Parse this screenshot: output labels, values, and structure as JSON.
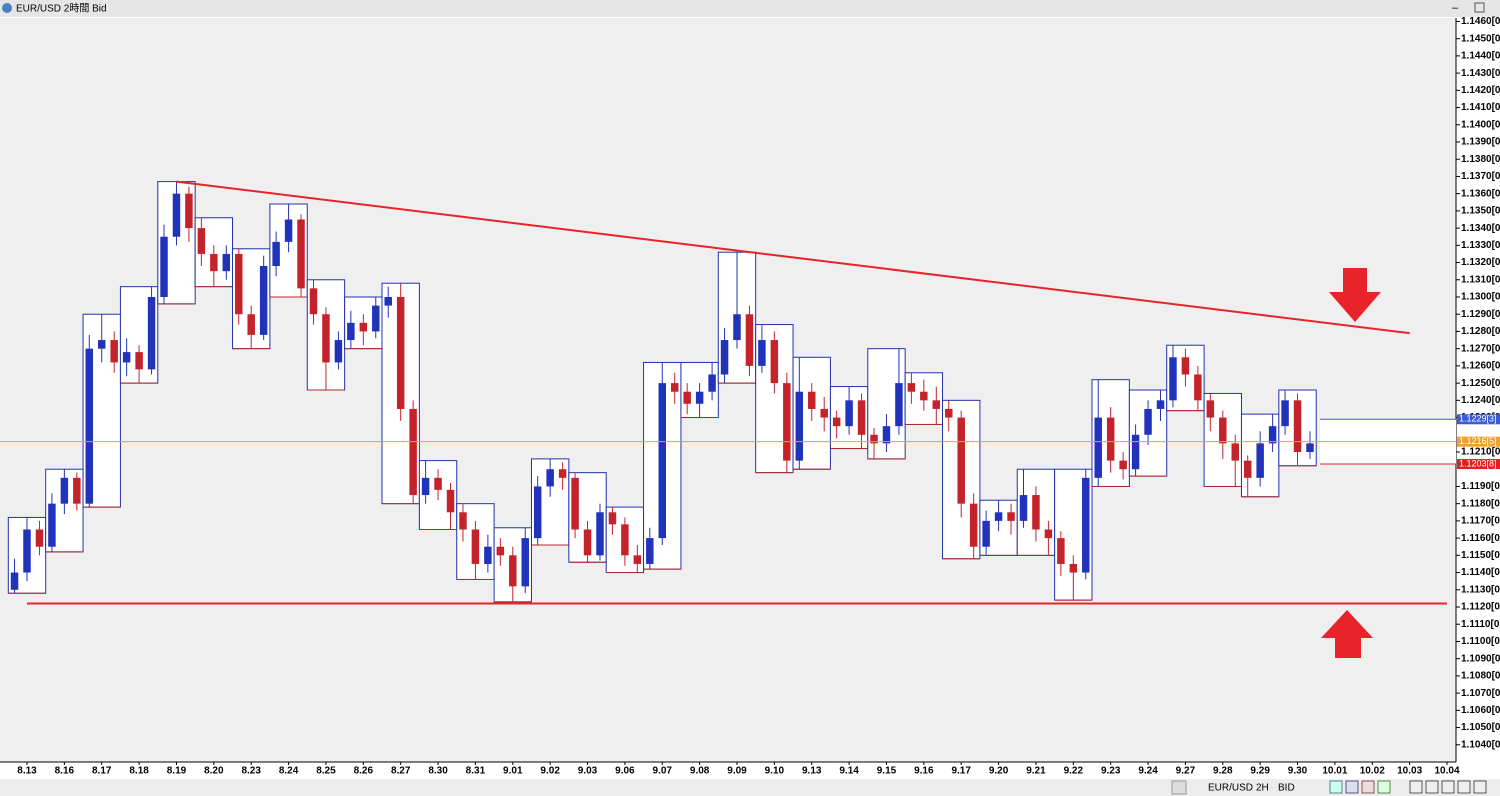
{
  "window": {
    "title": "EUR/USD 2時間 Bid"
  },
  "toolbar": {
    "symbol": "EUR/USD",
    "timeframe": "2H",
    "side": "BID"
  },
  "chart_data": {
    "type": "candlestick",
    "categories": [
      "8.13",
      "8.16",
      "8.17",
      "8.18",
      "8.19",
      "8.20",
      "8.23",
      "8.24",
      "8.25",
      "8.26",
      "8.27",
      "8.30",
      "8.31",
      "9.01",
      "9.02",
      "9.03",
      "9.06",
      "9.07",
      "9.08",
      "9.09",
      "9.10",
      "9.13",
      "9.14",
      "9.15",
      "9.16",
      "9.17",
      "9.20",
      "9.21",
      "9.22",
      "9.23",
      "9.24",
      "9.27",
      "9.28",
      "9.29",
      "9.30",
      "10.01",
      "10.02",
      "10.03",
      "10.04"
    ],
    "ylim": [
      1.103,
      1.1462
    ],
    "yticks": [
      {
        "value": 1.146,
        "label": "1.1460[0"
      },
      {
        "value": 1.145,
        "label": "1.1450[0"
      },
      {
        "value": 1.144,
        "label": "1.1440[0"
      },
      {
        "value": 1.143,
        "label": "1.1430[0"
      },
      {
        "value": 1.142,
        "label": "1.1420[0"
      },
      {
        "value": 1.141,
        "label": "1.1410[0"
      },
      {
        "value": 1.14,
        "label": "1.1400[0"
      },
      {
        "value": 1.139,
        "label": "1.1390[0"
      },
      {
        "value": 1.138,
        "label": "1.1380[0"
      },
      {
        "value": 1.137,
        "label": "1.1370[0"
      },
      {
        "value": 1.136,
        "label": "1.1360[0"
      },
      {
        "value": 1.135,
        "label": "1.1350[0"
      },
      {
        "value": 1.134,
        "label": "1.1340[0"
      },
      {
        "value": 1.133,
        "label": "1.1330[0"
      },
      {
        "value": 1.132,
        "label": "1.1320[0"
      },
      {
        "value": 1.131,
        "label": "1.1310[0"
      },
      {
        "value": 1.13,
        "label": "1.1300[0"
      },
      {
        "value": 1.129,
        "label": "1.1290[0"
      },
      {
        "value": 1.128,
        "label": "1.1280[0"
      },
      {
        "value": 1.127,
        "label": "1.1270[0"
      },
      {
        "value": 1.126,
        "label": "1.1260[0"
      },
      {
        "value": 1.125,
        "label": "1.1250[0"
      },
      {
        "value": 1.124,
        "label": "1.1240[0"
      },
      {
        "value": 1.123,
        "label": "1.1230[0"
      },
      {
        "value": 1.121,
        "label": "1.1210[0"
      },
      {
        "value": 1.119,
        "label": "1.1190[0"
      },
      {
        "value": 1.118,
        "label": "1.1180[0"
      },
      {
        "value": 1.117,
        "label": "1.1170[0"
      },
      {
        "value": 1.116,
        "label": "1.1160[0"
      },
      {
        "value": 1.115,
        "label": "1.1150[0"
      },
      {
        "value": 1.114,
        "label": "1.1140[0"
      },
      {
        "value": 1.113,
        "label": "1.1130[0"
      },
      {
        "value": 1.112,
        "label": "1.1120[0"
      },
      {
        "value": 1.111,
        "label": "1.1110[0"
      },
      {
        "value": 1.11,
        "label": "1.1100[0"
      },
      {
        "value": 1.109,
        "label": "1.1090[0"
      },
      {
        "value": 1.108,
        "label": "1.1080[0"
      },
      {
        "value": 1.107,
        "label": "1.1070[0"
      },
      {
        "value": 1.106,
        "label": "1.1060[0"
      },
      {
        "value": 1.105,
        "label": "1.1050[0"
      },
      {
        "value": 1.104,
        "label": "1.1040[0"
      }
    ],
    "up_color": "#2233bb",
    "down_color": "#c4232c",
    "candles": [
      [
        1.113,
        1.1148,
        1.1128,
        1.114
      ],
      [
        1.114,
        1.1172,
        1.1135,
        1.1165
      ],
      [
        1.1165,
        1.117,
        1.115,
        1.1155
      ],
      [
        1.1155,
        1.1186,
        1.1152,
        1.118
      ],
      [
        1.118,
        1.12,
        1.1174,
        1.1195
      ],
      [
        1.1195,
        1.1198,
        1.1176,
        1.118
      ],
      [
        1.118,
        1.1278,
        1.1178,
        1.127
      ],
      [
        1.127,
        1.129,
        1.1262,
        1.1275
      ],
      [
        1.1275,
        1.128,
        1.1256,
        1.1262
      ],
      [
        1.1262,
        1.1276,
        1.1254,
        1.1268
      ],
      [
        1.1268,
        1.1272,
        1.125,
        1.1258
      ],
      [
        1.1258,
        1.1306,
        1.1255,
        1.13
      ],
      [
        1.13,
        1.1342,
        1.1296,
        1.1335
      ],
      [
        1.1335,
        1.1367,
        1.133,
        1.136
      ],
      [
        1.136,
        1.1364,
        1.1332,
        1.134
      ],
      [
        1.134,
        1.1346,
        1.1318,
        1.1325
      ],
      [
        1.1325,
        1.133,
        1.1306,
        1.1315
      ],
      [
        1.1315,
        1.133,
        1.131,
        1.1325
      ],
      [
        1.1325,
        1.1328,
        1.1284,
        1.129
      ],
      [
        1.129,
        1.1295,
        1.127,
        1.1278
      ],
      [
        1.1278,
        1.1324,
        1.1275,
        1.1318
      ],
      [
        1.1318,
        1.1338,
        1.1312,
        1.1332
      ],
      [
        1.1332,
        1.1354,
        1.1326,
        1.1345
      ],
      [
        1.1345,
        1.1348,
        1.13,
        1.1305
      ],
      [
        1.1305,
        1.131,
        1.1284,
        1.129
      ],
      [
        1.129,
        1.1294,
        1.1246,
        1.1262
      ],
      [
        1.1262,
        1.128,
        1.1258,
        1.1275
      ],
      [
        1.1275,
        1.1292,
        1.127,
        1.1285
      ],
      [
        1.1285,
        1.129,
        1.1272,
        1.128
      ],
      [
        1.128,
        1.13,
        1.1276,
        1.1295
      ],
      [
        1.1295,
        1.1306,
        1.1288,
        1.13
      ],
      [
        1.13,
        1.1308,
        1.1228,
        1.1235
      ],
      [
        1.1235,
        1.124,
        1.118,
        1.1185
      ],
      [
        1.1185,
        1.1205,
        1.118,
        1.1195
      ],
      [
        1.1195,
        1.12,
        1.1182,
        1.1188
      ],
      [
        1.1188,
        1.1192,
        1.1165,
        1.1175
      ],
      [
        1.1175,
        1.118,
        1.1158,
        1.1165
      ],
      [
        1.1165,
        1.117,
        1.1136,
        1.1145
      ],
      [
        1.1145,
        1.1162,
        1.114,
        1.1155
      ],
      [
        1.1155,
        1.116,
        1.1144,
        1.115
      ],
      [
        1.115,
        1.1155,
        1.1123,
        1.1132
      ],
      [
        1.1132,
        1.1166,
        1.1128,
        1.116
      ],
      [
        1.116,
        1.1196,
        1.1156,
        1.119
      ],
      [
        1.119,
        1.1206,
        1.1184,
        1.12
      ],
      [
        1.12,
        1.1204,
        1.1188,
        1.1195
      ],
      [
        1.1195,
        1.1198,
        1.116,
        1.1165
      ],
      [
        1.1165,
        1.117,
        1.1146,
        1.115
      ],
      [
        1.115,
        1.118,
        1.1147,
        1.1175
      ],
      [
        1.1175,
        1.1178,
        1.1162,
        1.1168
      ],
      [
        1.1168,
        1.1172,
        1.1144,
        1.115
      ],
      [
        1.115,
        1.1156,
        1.114,
        1.1145
      ],
      [
        1.1145,
        1.1166,
        1.1142,
        1.116
      ],
      [
        1.116,
        1.1262,
        1.1156,
        1.125
      ],
      [
        1.125,
        1.1256,
        1.1238,
        1.1245
      ],
      [
        1.1245,
        1.125,
        1.1232,
        1.1238
      ],
      [
        1.1238,
        1.125,
        1.123,
        1.1245
      ],
      [
        1.1245,
        1.1262,
        1.124,
        1.1255
      ],
      [
        1.1255,
        1.1282,
        1.125,
        1.1275
      ],
      [
        1.1275,
        1.1326,
        1.127,
        1.129
      ],
      [
        1.129,
        1.1295,
        1.1254,
        1.126
      ],
      [
        1.126,
        1.1284,
        1.1256,
        1.1275
      ],
      [
        1.1275,
        1.128,
        1.1244,
        1.125
      ],
      [
        1.125,
        1.1256,
        1.1198,
        1.1205
      ],
      [
        1.1205,
        1.1265,
        1.12,
        1.1245
      ],
      [
        1.1245,
        1.125,
        1.1228,
        1.1235
      ],
      [
        1.1235,
        1.1242,
        1.1222,
        1.123
      ],
      [
        1.123,
        1.1234,
        1.1218,
        1.1225
      ],
      [
        1.1225,
        1.1248,
        1.122,
        1.124
      ],
      [
        1.124,
        1.1244,
        1.1212,
        1.122
      ],
      [
        1.122,
        1.1224,
        1.1206,
        1.1215
      ],
      [
        1.1215,
        1.1232,
        1.121,
        1.1225
      ],
      [
        1.1225,
        1.127,
        1.122,
        1.125
      ],
      [
        1.125,
        1.1256,
        1.1238,
        1.1245
      ],
      [
        1.1245,
        1.1252,
        1.1234,
        1.124
      ],
      [
        1.124,
        1.1248,
        1.1226,
        1.1235
      ],
      [
        1.1235,
        1.124,
        1.1222,
        1.123
      ],
      [
        1.123,
        1.1234,
        1.1172,
        1.118
      ],
      [
        1.118,
        1.1186,
        1.1148,
        1.1155
      ],
      [
        1.1155,
        1.1176,
        1.115,
        1.117
      ],
      [
        1.117,
        1.1182,
        1.1164,
        1.1175
      ],
      [
        1.1175,
        1.118,
        1.1162,
        1.117
      ],
      [
        1.117,
        1.12,
        1.1166,
        1.1185
      ],
      [
        1.1185,
        1.119,
        1.1158,
        1.1165
      ],
      [
        1.1165,
        1.117,
        1.115,
        1.116
      ],
      [
        1.116,
        1.1164,
        1.1138,
        1.1145
      ],
      [
        1.1145,
        1.115,
        1.1124,
        1.114
      ],
      [
        1.114,
        1.12,
        1.1136,
        1.1195
      ],
      [
        1.1195,
        1.1252,
        1.119,
        1.123
      ],
      [
        1.123,
        1.1236,
        1.1198,
        1.1205
      ],
      [
        1.1205,
        1.121,
        1.1194,
        1.12
      ],
      [
        1.12,
        1.1226,
        1.1196,
        1.122
      ],
      [
        1.122,
        1.124,
        1.1214,
        1.1235
      ],
      [
        1.1235,
        1.1246,
        1.1228,
        1.124
      ],
      [
        1.124,
        1.1272,
        1.1236,
        1.1265
      ],
      [
        1.1265,
        1.127,
        1.1248,
        1.1255
      ],
      [
        1.1255,
        1.126,
        1.1234,
        1.124
      ],
      [
        1.124,
        1.1244,
        1.1222,
        1.123
      ],
      [
        1.123,
        1.1234,
        1.1206,
        1.1215
      ],
      [
        1.1215,
        1.122,
        1.119,
        1.1205
      ],
      [
        1.1205,
        1.1208,
        1.1184,
        1.1195
      ],
      [
        1.1195,
        1.1222,
        1.119,
        1.1215
      ],
      [
        1.1215,
        1.1232,
        1.121,
        1.1225
      ],
      [
        1.1225,
        1.1246,
        1.122,
        1.124
      ],
      [
        1.124,
        1.1244,
        1.1202,
        1.121
      ],
      [
        1.121,
        1.1222,
        1.1206,
        1.1215
      ]
    ],
    "boxes": [
      [
        1.1128,
        1.1172
      ],
      [
        1.1152,
        1.12
      ],
      [
        1.1178,
        1.129
      ],
      [
        1.125,
        1.1306
      ],
      [
        1.1296,
        1.1367
      ],
      [
        1.1306,
        1.1346
      ],
      [
        1.127,
        1.1328
      ],
      [
        1.13,
        1.1354
      ],
      [
        1.1246,
        1.131
      ],
      [
        1.127,
        1.13
      ],
      [
        1.118,
        1.1308
      ],
      [
        1.1165,
        1.1205
      ],
      [
        1.1136,
        1.118
      ],
      [
        1.1123,
        1.1166
      ],
      [
        1.1156,
        1.1206
      ],
      [
        1.1146,
        1.1198
      ],
      [
        1.114,
        1.1178
      ],
      [
        1.1142,
        1.1262
      ],
      [
        1.123,
        1.1262
      ],
      [
        1.125,
        1.1326
      ],
      [
        1.1198,
        1.1284
      ],
      [
        1.12,
        1.1265
      ],
      [
        1.1212,
        1.1248
      ],
      [
        1.1206,
        1.127
      ],
      [
        1.1226,
        1.1256
      ],
      [
        1.1148,
        1.124
      ],
      [
        1.115,
        1.1182
      ],
      [
        1.115,
        1.12
      ],
      [
        1.1124,
        1.12
      ],
      [
        1.119,
        1.1252
      ],
      [
        1.1196,
        1.1246
      ],
      [
        1.1234,
        1.1272
      ],
      [
        1.119,
        1.1244
      ],
      [
        1.1184,
        1.1232
      ],
      [
        1.1202,
        1.1246
      ]
    ],
    "box_color": "#2233aa",
    "box_low_color": "#b02a2a",
    "resistance": {
      "from": "8.19",
      "to": "10.03",
      "values": [
        1.1367,
        1.1279
      ],
      "color": "#e8232a"
    },
    "support": {
      "from": "8.13",
      "to": "10.04",
      "value": 1.1122,
      "color": "#e8232a"
    },
    "price_tags": [
      {
        "value": 1.1229,
        "label": "1.1229[3]",
        "color": "#3b5bd6"
      },
      {
        "value": 1.1216,
        "label": "1.1216[5]",
        "color": "#f0a030"
      },
      {
        "value": 1.1203,
        "label": "1.1203[8]",
        "color": "#e02020"
      }
    ]
  }
}
